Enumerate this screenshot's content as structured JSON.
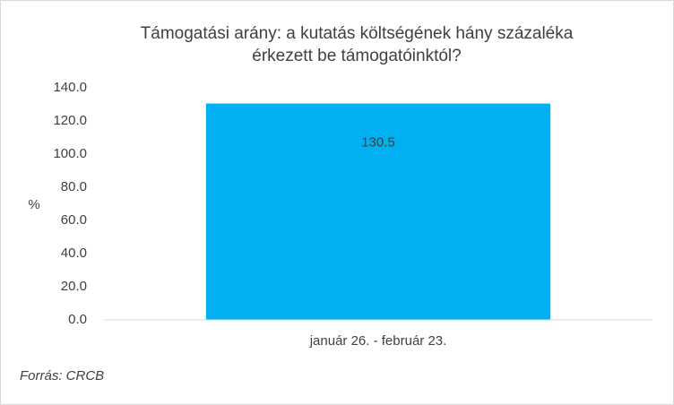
{
  "chart_data": {
    "type": "bar",
    "title": [
      "Támogatási arány: a kutatás költségének hány százaléka",
      "érkezett be támogatóinktól?"
    ],
    "y_label": "%",
    "source": "Forrás: CRCB",
    "categories": [
      "január 26. - február 23."
    ],
    "values": [
      130.5
    ],
    "color": "#00b0f0",
    "ylim": [
      0,
      140
    ],
    "yticks": [
      {
        "value": 0,
        "label": "0.0"
      },
      {
        "value": 20,
        "label": "20.0"
      },
      {
        "value": 40,
        "label": "40.0"
      },
      {
        "value": 60,
        "label": "60.0"
      },
      {
        "value": 80,
        "label": "80.0"
      },
      {
        "value": 100,
        "label": "100.0"
      },
      {
        "value": 120,
        "label": "120.0"
      },
      {
        "value": 140,
        "label": "140.0"
      }
    ],
    "grid": false
  }
}
